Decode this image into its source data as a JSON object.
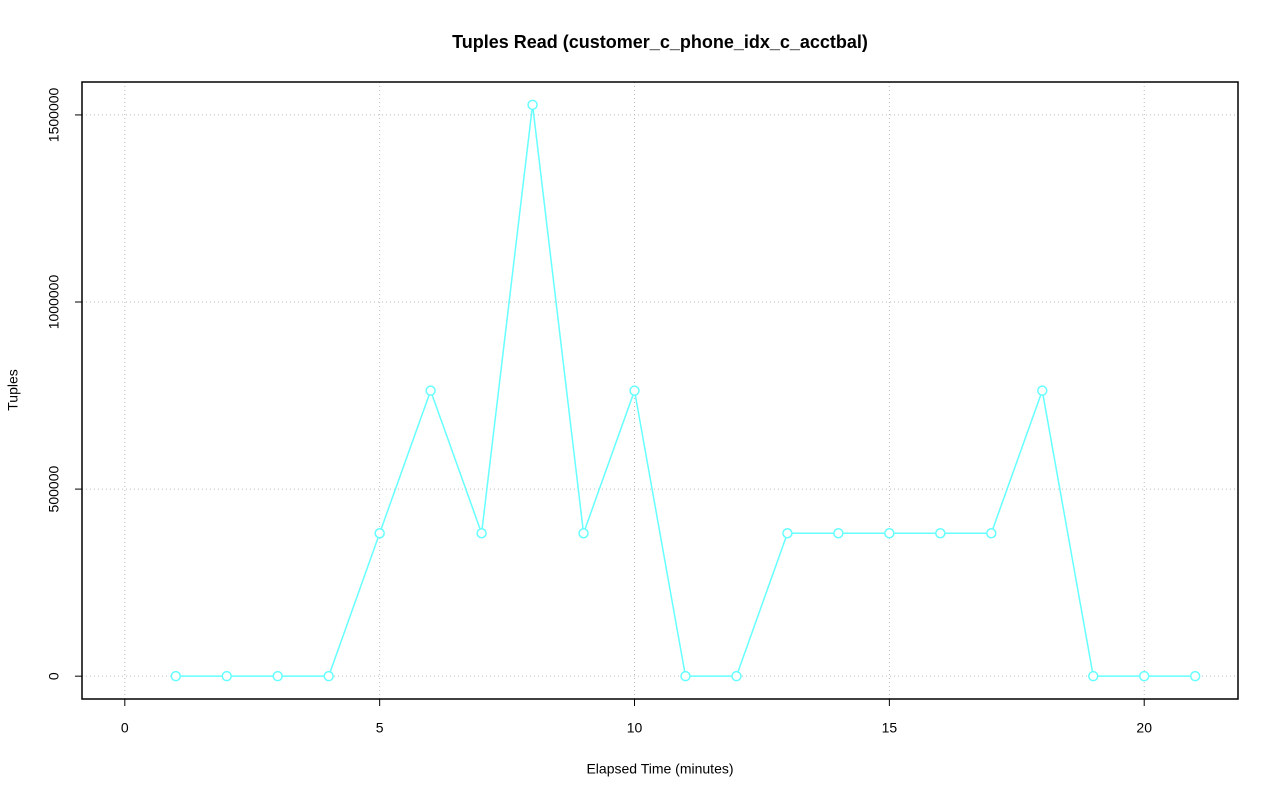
{
  "chart_data": {
    "type": "line",
    "title": "Tuples Read (customer_c_phone_idx_c_acctbal)",
    "x_label": "Elapsed Time (minutes)",
    "y_label": "Tuples",
    "x": [
      1,
      2,
      3,
      4,
      5,
      6,
      7,
      8,
      9,
      10,
      11,
      12,
      13,
      14,
      15,
      16,
      17,
      18,
      19,
      20,
      21
    ],
    "series": [
      {
        "color": "#66ffff",
        "values": [
          0,
          0,
          0,
          0,
          382000,
          763000,
          382000,
          1527000,
          382000,
          763000,
          0,
          0,
          382000,
          382000,
          382000,
          382000,
          382000,
          763000,
          0,
          0,
          0
        ]
      }
    ],
    "xlim": [
      -0.84,
      21.84
    ],
    "xticks": [
      0,
      5,
      10,
      15,
      20
    ],
    "ylim": [
      -61000,
      1588000
    ],
    "yticks": [
      0,
      500000,
      1000000,
      1500000
    ],
    "grid": true
  }
}
